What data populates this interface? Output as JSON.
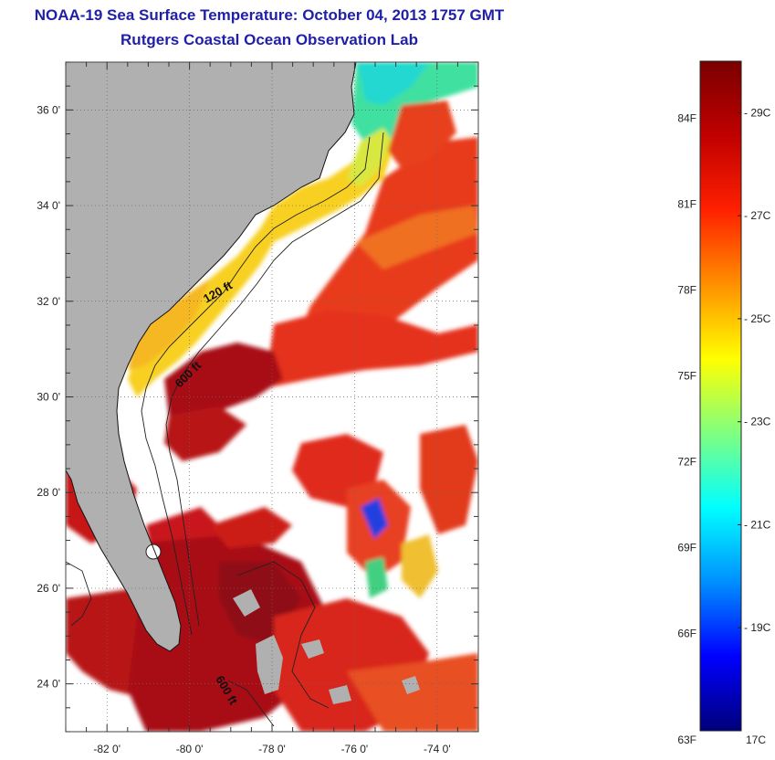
{
  "title": "NOAA-19 Sea Surface Temperature:  October 04, 2013 1757 GMT",
  "subtitle": "Rutgers Coastal Ocean Observation Lab",
  "map": {
    "lon_range": [
      -83,
      -73
    ],
    "lat_range": [
      23,
      37
    ],
    "lat_ticks": [
      {
        "value": 24,
        "label": "24 0'"
      },
      {
        "value": 26,
        "label": "26 0'"
      },
      {
        "value": 28,
        "label": "28 0'"
      },
      {
        "value": 30,
        "label": "30 0'"
      },
      {
        "value": 32,
        "label": "32 0'"
      },
      {
        "value": 34,
        "label": "34 0'"
      },
      {
        "value": 36,
        "label": "36 0'"
      }
    ],
    "lon_ticks": [
      {
        "value": -82,
        "label": "-82 0'"
      },
      {
        "value": -80,
        "label": "-80 0'"
      },
      {
        "value": -78,
        "label": "-78 0'"
      },
      {
        "value": -76,
        "label": "-76 0'"
      },
      {
        "value": -74,
        "label": "-74 0'"
      }
    ],
    "contour_labels": [
      "120 ft",
      "600 ft",
      "600 ft"
    ],
    "colors": {
      "land": "#b0b0b0",
      "cloud": "#ffffff",
      "warm": "#c8141a",
      "hot": "#8e0a12"
    }
  },
  "colorbar": {
    "range_c": [
      17,
      30
    ],
    "f_labels": [
      {
        "value": 63,
        "label": "63F"
      },
      {
        "value": 66,
        "label": "66F"
      },
      {
        "value": 69,
        "label": "69F"
      },
      {
        "value": 72,
        "label": "72F"
      },
      {
        "value": 75,
        "label": "75F"
      },
      {
        "value": 78,
        "label": "78F"
      },
      {
        "value": 81,
        "label": "81F"
      },
      {
        "value": 84,
        "label": "84F"
      }
    ],
    "c_labels": [
      {
        "value": 17,
        "label": "17C"
      },
      {
        "value": 19,
        "label": "19C"
      },
      {
        "value": 21,
        "label": "21C"
      },
      {
        "value": 23,
        "label": "23C"
      },
      {
        "value": 25,
        "label": "25C"
      },
      {
        "value": 27,
        "label": "27C"
      },
      {
        "value": 29,
        "label": "29C"
      }
    ],
    "stops": [
      "#00007a",
      "#0000ff",
      "#0090ff",
      "#00ffff",
      "#80ff80",
      "#ffff00",
      "#ff9000",
      "#ff2000",
      "#c00000",
      "#7a0000"
    ]
  }
}
